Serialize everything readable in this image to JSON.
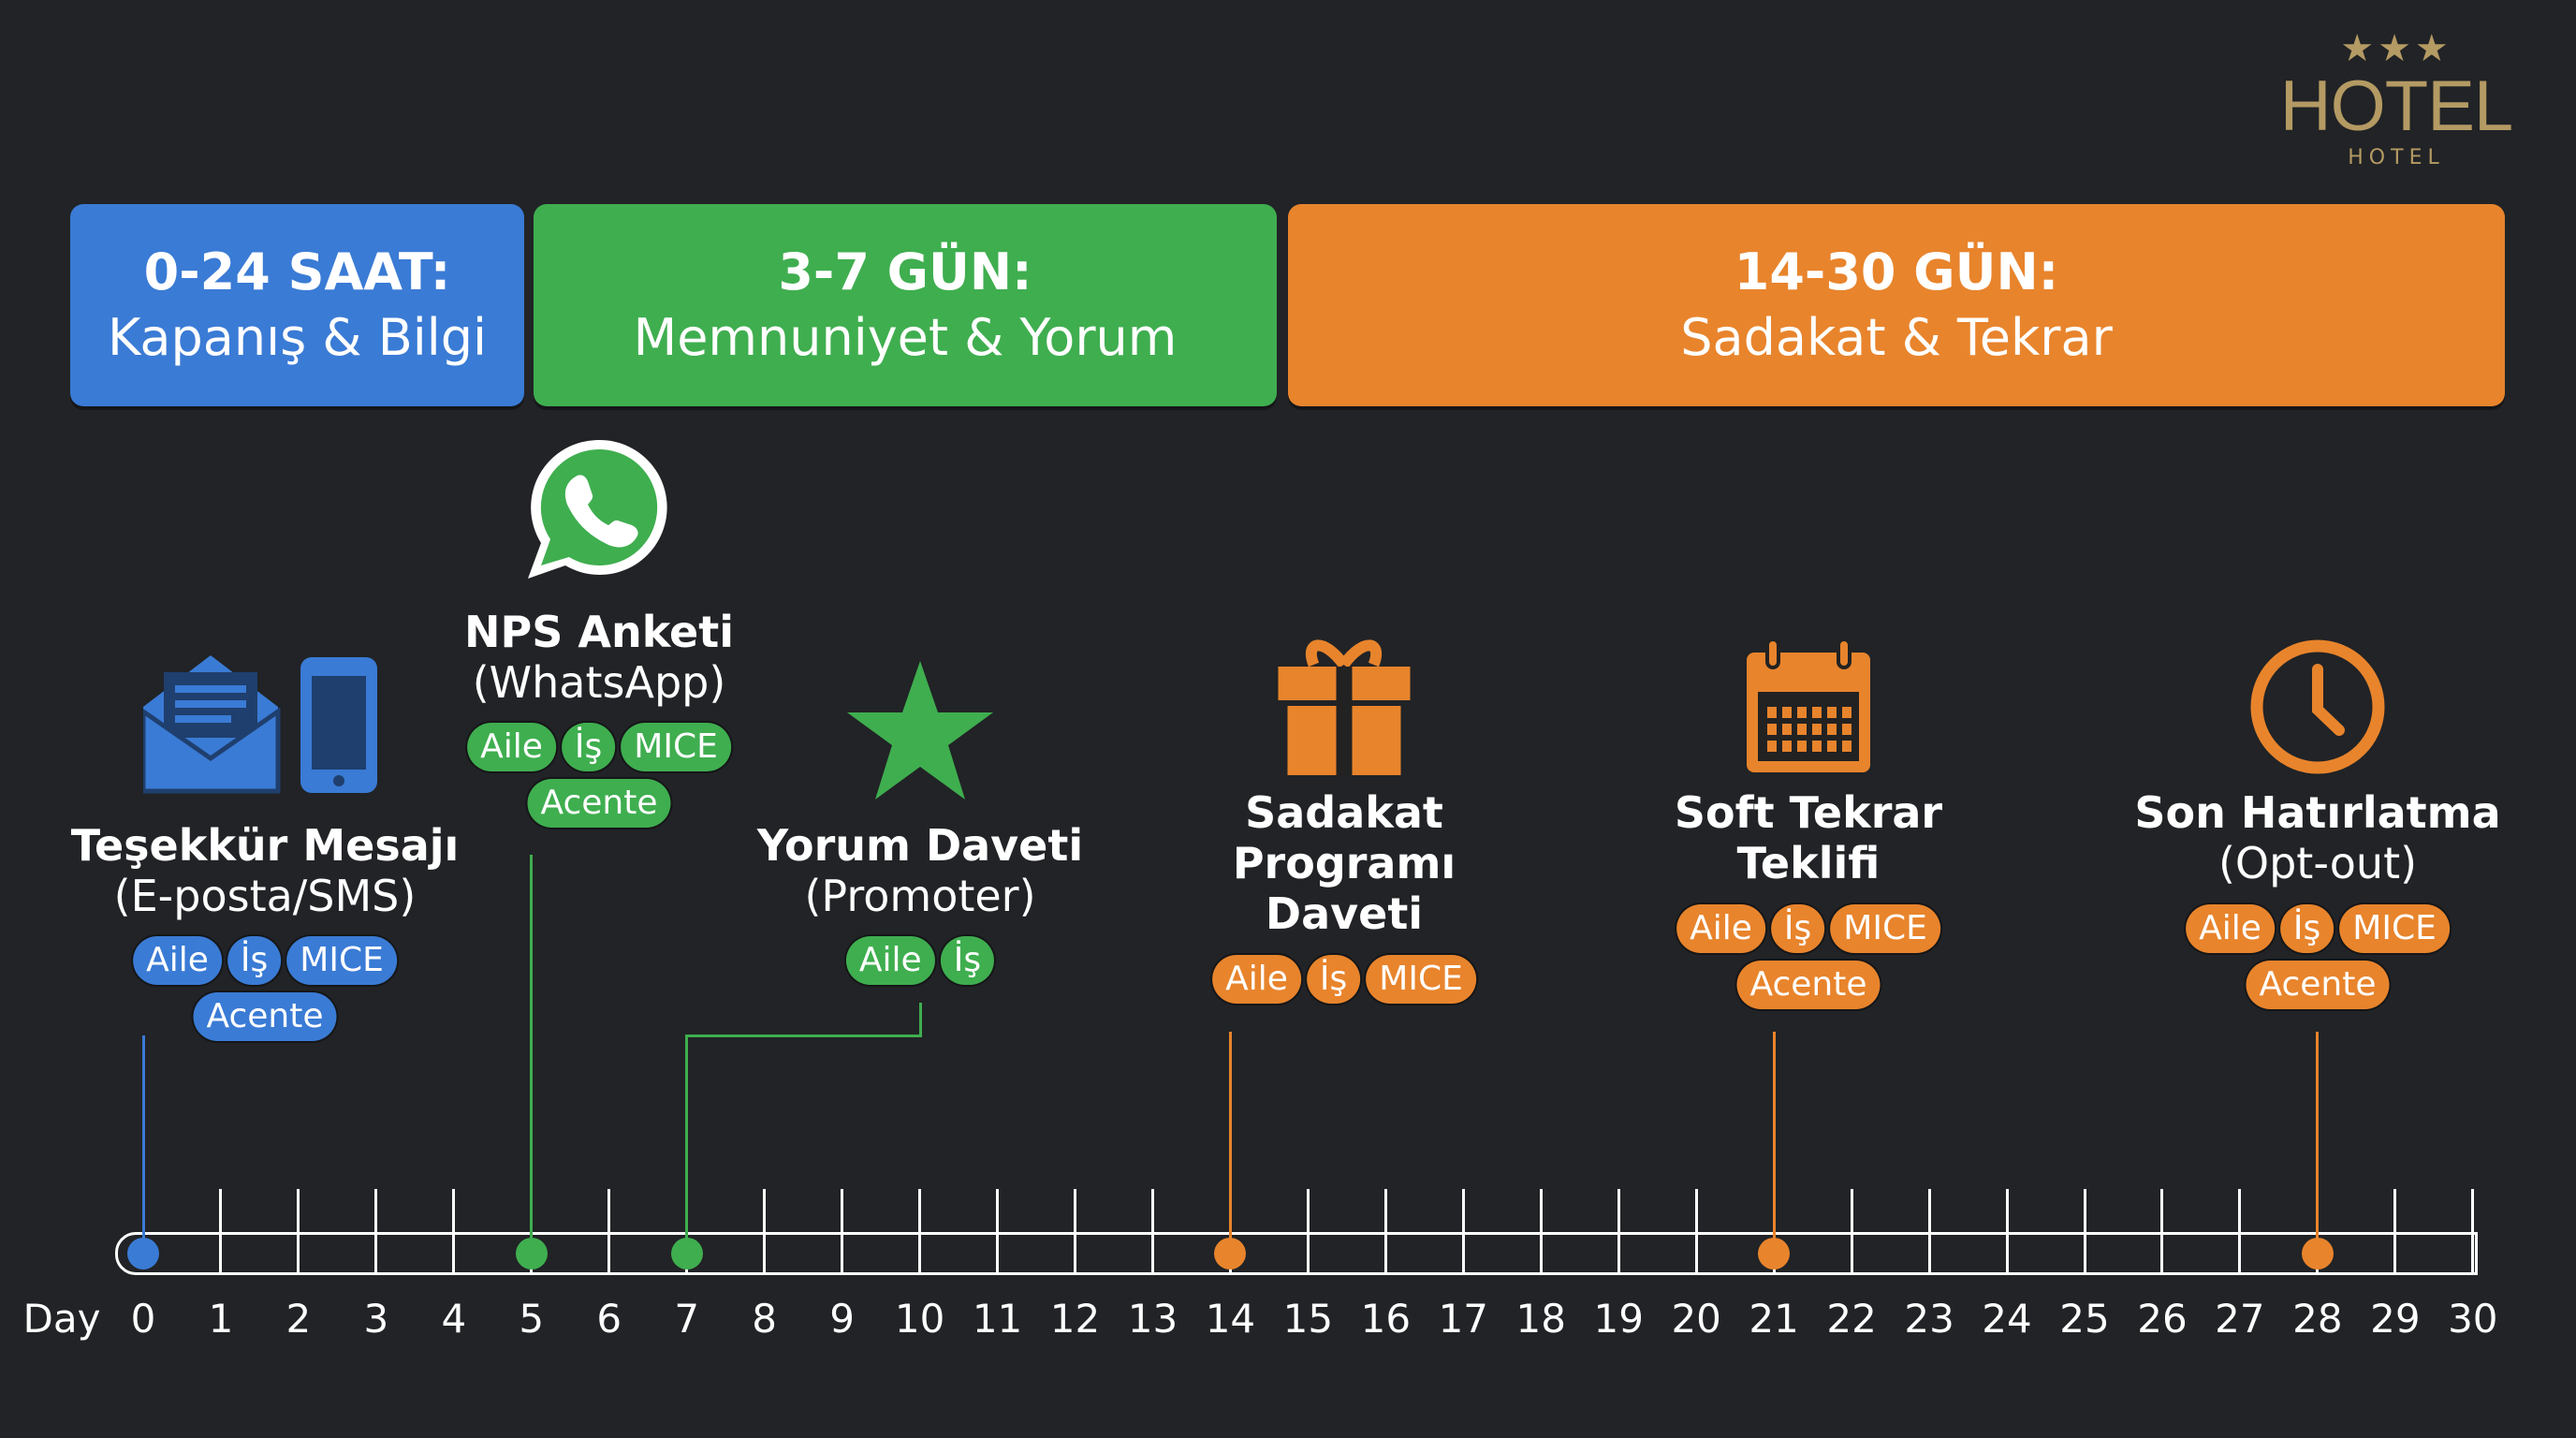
{
  "colors": {
    "background": "#212326",
    "blue": "#3a7bd5",
    "green": "#3fae4f",
    "orange": "#e8842c",
    "gold": "#b49a63"
  },
  "logo": {
    "stars": "★★★",
    "main": "HOTEL",
    "sub": "HOTEL"
  },
  "phases": [
    {
      "title": "0-24 SAAT:",
      "subtitle": "Kapanış & Bilgi",
      "color": "#3a7bd5"
    },
    {
      "title": "3-7 GÜN:",
      "subtitle": "Memnuniyet & Yorum",
      "color": "#3fae4f"
    },
    {
      "title": "14-30 GÜN:",
      "subtitle": "Sadakat & Tekrar",
      "color": "#e8842c"
    }
  ],
  "timeline": {
    "axis_label": "Day",
    "days": [
      "0",
      "1",
      "2",
      "3",
      "4",
      "5",
      "6",
      "7",
      "8",
      "9",
      "10",
      "11",
      "12",
      "13",
      "14",
      "15",
      "16",
      "17",
      "18",
      "19",
      "20",
      "21",
      "22",
      "23",
      "24",
      "25",
      "26",
      "27",
      "28",
      "29",
      "30"
    ]
  },
  "events": [
    {
      "day": 0,
      "icon": "envelope-and-phone-icon",
      "title": [
        "Teşekkür Mesajı",
        "(E-posta/SMS)"
      ],
      "tags": [
        [
          "Aile",
          "İş",
          "MICE"
        ],
        [
          "Acente"
        ]
      ],
      "color": "#3a7bd5"
    },
    {
      "day": 5,
      "icon": "whatsapp-icon",
      "title": [
        "NPS Anketi",
        "(WhatsApp)"
      ],
      "tags": [
        [
          "Aile",
          "İş",
          "MICE"
        ],
        [
          "Acente"
        ]
      ],
      "color": "#3fae4f"
    },
    {
      "day": 7,
      "icon": "star-icon",
      "title": [
        "Yorum Daveti",
        "(Promoter)"
      ],
      "tags": [
        [
          "Aile",
          "İş"
        ]
      ],
      "color": "#3fae4f"
    },
    {
      "day": 14,
      "icon": "gift-icon",
      "title": [
        "Sadakat",
        "Programı",
        "Daveti"
      ],
      "tags": [
        [
          "Aile",
          "İş",
          "MICE"
        ]
      ],
      "color": "#e8842c",
      "all_bold": true
    },
    {
      "day": 21,
      "icon": "calendar-icon",
      "title": [
        "Soft Tekrar",
        "Teklifi"
      ],
      "tags": [
        [
          "Aile",
          "İş",
          "MICE"
        ],
        [
          "Acente"
        ]
      ],
      "color": "#e8842c",
      "all_bold": true
    },
    {
      "day": 28,
      "icon": "clock-icon",
      "title": [
        "Son Hatırlatma",
        "(Opt-out)"
      ],
      "tags": [
        [
          "Aile",
          "İş",
          "MICE"
        ],
        [
          "Acente"
        ]
      ],
      "color": "#e8842c"
    }
  ]
}
